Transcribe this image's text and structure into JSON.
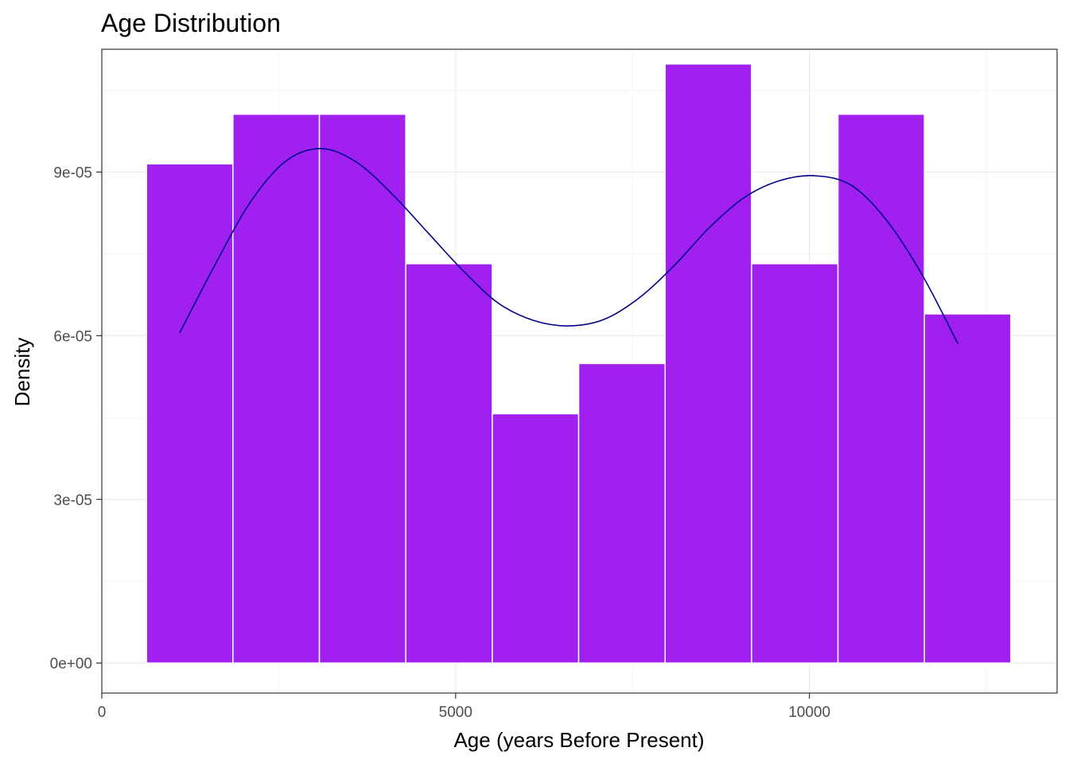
{
  "chart_data": {
    "type": "histogram",
    "title": "Age Distribution",
    "xlabel": "Age (years Before Present)",
    "ylabel": "Density",
    "xlim": [
      0,
      13500
    ],
    "ylim": [
      -5.5e-06,
      0.0001125
    ],
    "x_ticks": [
      {
        "value": 0,
        "label": "0"
      },
      {
        "value": 5000,
        "label": "5000"
      },
      {
        "value": 10000,
        "label": "10000"
      }
    ],
    "y_ticks": [
      {
        "value": 0,
        "label": "0e+00"
      },
      {
        "value": 3e-05,
        "label": "3e-05"
      },
      {
        "value": 6e-05,
        "label": "6e-05"
      },
      {
        "value": 9e-05,
        "label": "9e-05"
      }
    ],
    "bins": [
      {
        "x0": 632,
        "x1": 1853,
        "density": 9.15e-05
      },
      {
        "x0": 1853,
        "x1": 3075,
        "density": 0.0001006
      },
      {
        "x0": 3075,
        "x1": 4296,
        "density": 0.0001006
      },
      {
        "x0": 4296,
        "x1": 5518,
        "density": 7.32e-05
      },
      {
        "x0": 5518,
        "x1": 6739,
        "density": 4.57e-05
      },
      {
        "x0": 6739,
        "x1": 7961,
        "density": 5.49e-05
      },
      {
        "x0": 7961,
        "x1": 9182,
        "density": 0.0001098
      },
      {
        "x0": 9182,
        "x1": 10404,
        "density": 7.32e-05
      },
      {
        "x0": 10404,
        "x1": 11625,
        "density": 0.0001006
      },
      {
        "x0": 11625,
        "x1": 12847,
        "density": 6.4e-05
      }
    ],
    "density_curve": {
      "x": [
        1100,
        1600,
        2100,
        2600,
        3100,
        3600,
        4100,
        4600,
        5100,
        5600,
        6100,
        6600,
        7100,
        7600,
        8100,
        8600,
        9100,
        9600,
        10100,
        10600,
        11100,
        11600,
        12100
      ],
      "y": [
        6.05e-05,
        7.3e-05,
        8.45e-05,
        9.2e-05,
        9.43e-05,
        9.18e-05,
        8.6e-05,
        7.9e-05,
        7.2e-05,
        6.6e-05,
        6.28e-05,
        6.18e-05,
        6.3e-05,
        6.7e-05,
        7.3e-05,
        8e-05,
        8.55e-05,
        8.85e-05,
        8.93e-05,
        8.75e-05,
        8.1e-05,
        7.1e-05,
        5.85e-05
      ]
    },
    "grid": true,
    "colors": {
      "bar_fill": "#a020f0",
      "bar_border": "#ffffff",
      "curve": "#00008b",
      "grid_major": "#ebebeb",
      "grid_minor": "#f5f5f5",
      "panel_border": "#333333",
      "tick": "#333333"
    }
  }
}
